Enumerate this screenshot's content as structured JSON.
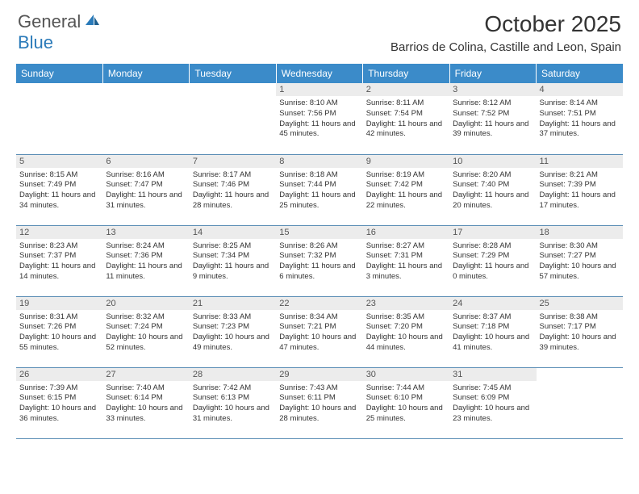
{
  "logo": {
    "text1": "General",
    "text2": "Blue"
  },
  "title": "October 2025",
  "location": "Barrios de Colina, Castille and Leon, Spain",
  "colors": {
    "header_bg": "#3b8bc9",
    "header_text": "#ffffff",
    "daynum_bg": "#ececec",
    "cell_border": "#5a8db5",
    "logo_gray": "#555555",
    "logo_blue": "#2a7ab9"
  },
  "day_headers": [
    "Sunday",
    "Monday",
    "Tuesday",
    "Wednesday",
    "Thursday",
    "Friday",
    "Saturday"
  ],
  "weeks": [
    [
      null,
      null,
      null,
      {
        "n": "1",
        "sr": "8:10 AM",
        "ss": "7:56 PM",
        "dl": "11 hours and 45 minutes."
      },
      {
        "n": "2",
        "sr": "8:11 AM",
        "ss": "7:54 PM",
        "dl": "11 hours and 42 minutes."
      },
      {
        "n": "3",
        "sr": "8:12 AM",
        "ss": "7:52 PM",
        "dl": "11 hours and 39 minutes."
      },
      {
        "n": "4",
        "sr": "8:14 AM",
        "ss": "7:51 PM",
        "dl": "11 hours and 37 minutes."
      }
    ],
    [
      {
        "n": "5",
        "sr": "8:15 AM",
        "ss": "7:49 PM",
        "dl": "11 hours and 34 minutes."
      },
      {
        "n": "6",
        "sr": "8:16 AM",
        "ss": "7:47 PM",
        "dl": "11 hours and 31 minutes."
      },
      {
        "n": "7",
        "sr": "8:17 AM",
        "ss": "7:46 PM",
        "dl": "11 hours and 28 minutes."
      },
      {
        "n": "8",
        "sr": "8:18 AM",
        "ss": "7:44 PM",
        "dl": "11 hours and 25 minutes."
      },
      {
        "n": "9",
        "sr": "8:19 AM",
        "ss": "7:42 PM",
        "dl": "11 hours and 22 minutes."
      },
      {
        "n": "10",
        "sr": "8:20 AM",
        "ss": "7:40 PM",
        "dl": "11 hours and 20 minutes."
      },
      {
        "n": "11",
        "sr": "8:21 AM",
        "ss": "7:39 PM",
        "dl": "11 hours and 17 minutes."
      }
    ],
    [
      {
        "n": "12",
        "sr": "8:23 AM",
        "ss": "7:37 PM",
        "dl": "11 hours and 14 minutes."
      },
      {
        "n": "13",
        "sr": "8:24 AM",
        "ss": "7:36 PM",
        "dl": "11 hours and 11 minutes."
      },
      {
        "n": "14",
        "sr": "8:25 AM",
        "ss": "7:34 PM",
        "dl": "11 hours and 9 minutes."
      },
      {
        "n": "15",
        "sr": "8:26 AM",
        "ss": "7:32 PM",
        "dl": "11 hours and 6 minutes."
      },
      {
        "n": "16",
        "sr": "8:27 AM",
        "ss": "7:31 PM",
        "dl": "11 hours and 3 minutes."
      },
      {
        "n": "17",
        "sr": "8:28 AM",
        "ss": "7:29 PM",
        "dl": "11 hours and 0 minutes."
      },
      {
        "n": "18",
        "sr": "8:30 AM",
        "ss": "7:27 PM",
        "dl": "10 hours and 57 minutes."
      }
    ],
    [
      {
        "n": "19",
        "sr": "8:31 AM",
        "ss": "7:26 PM",
        "dl": "10 hours and 55 minutes."
      },
      {
        "n": "20",
        "sr": "8:32 AM",
        "ss": "7:24 PM",
        "dl": "10 hours and 52 minutes."
      },
      {
        "n": "21",
        "sr": "8:33 AM",
        "ss": "7:23 PM",
        "dl": "10 hours and 49 minutes."
      },
      {
        "n": "22",
        "sr": "8:34 AM",
        "ss": "7:21 PM",
        "dl": "10 hours and 47 minutes."
      },
      {
        "n": "23",
        "sr": "8:35 AM",
        "ss": "7:20 PM",
        "dl": "10 hours and 44 minutes."
      },
      {
        "n": "24",
        "sr": "8:37 AM",
        "ss": "7:18 PM",
        "dl": "10 hours and 41 minutes."
      },
      {
        "n": "25",
        "sr": "8:38 AM",
        "ss": "7:17 PM",
        "dl": "10 hours and 39 minutes."
      }
    ],
    [
      {
        "n": "26",
        "sr": "7:39 AM",
        "ss": "6:15 PM",
        "dl": "10 hours and 36 minutes."
      },
      {
        "n": "27",
        "sr": "7:40 AM",
        "ss": "6:14 PM",
        "dl": "10 hours and 33 minutes."
      },
      {
        "n": "28",
        "sr": "7:42 AM",
        "ss": "6:13 PM",
        "dl": "10 hours and 31 minutes."
      },
      {
        "n": "29",
        "sr": "7:43 AM",
        "ss": "6:11 PM",
        "dl": "10 hours and 28 minutes."
      },
      {
        "n": "30",
        "sr": "7:44 AM",
        "ss": "6:10 PM",
        "dl": "10 hours and 25 minutes."
      },
      {
        "n": "31",
        "sr": "7:45 AM",
        "ss": "6:09 PM",
        "dl": "10 hours and 23 minutes."
      },
      null
    ]
  ],
  "labels": {
    "sunrise": "Sunrise: ",
    "sunset": "Sunset: ",
    "daylight": "Daylight: "
  }
}
